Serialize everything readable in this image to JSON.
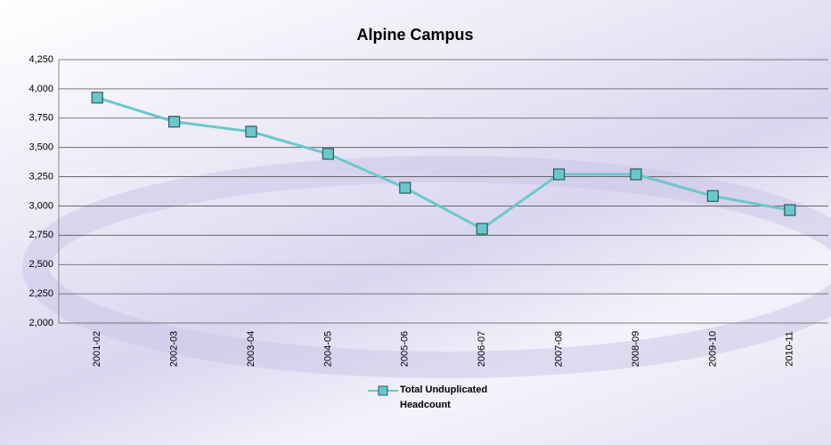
{
  "chart_data": {
    "type": "line",
    "title": "Alpine Campus",
    "categories": [
      "2001-02",
      "2002-03",
      "2003-04",
      "2004-05",
      "2005-06",
      "2006-07",
      "2007-08",
      "2008-09",
      "2009-10",
      "2010-11"
    ],
    "series": [
      {
        "name": "Total Unduplicated Headcount",
        "color": "#6cc7cc",
        "values": [
          3925,
          3720,
          3635,
          3445,
          3155,
          2805,
          3270,
          3270,
          3085,
          2965
        ]
      }
    ],
    "ylim": [
      2000,
      4250
    ],
    "yticks": [
      {
        "value": 2000,
        "label": "2,000"
      },
      {
        "value": 2250,
        "label": "2,250"
      },
      {
        "value": 2500,
        "label": "2,500"
      },
      {
        "value": 2750,
        "label": "2,750"
      },
      {
        "value": 3000,
        "label": "3,000"
      },
      {
        "value": 3250,
        "label": "3,250"
      },
      {
        "value": 3500,
        "label": "3,500"
      },
      {
        "value": 3750,
        "label": "3,750"
      },
      {
        "value": 4000,
        "label": "4,000"
      },
      {
        "value": 4250,
        "label": "4,250"
      }
    ],
    "grid": true,
    "legend": "bottom"
  }
}
